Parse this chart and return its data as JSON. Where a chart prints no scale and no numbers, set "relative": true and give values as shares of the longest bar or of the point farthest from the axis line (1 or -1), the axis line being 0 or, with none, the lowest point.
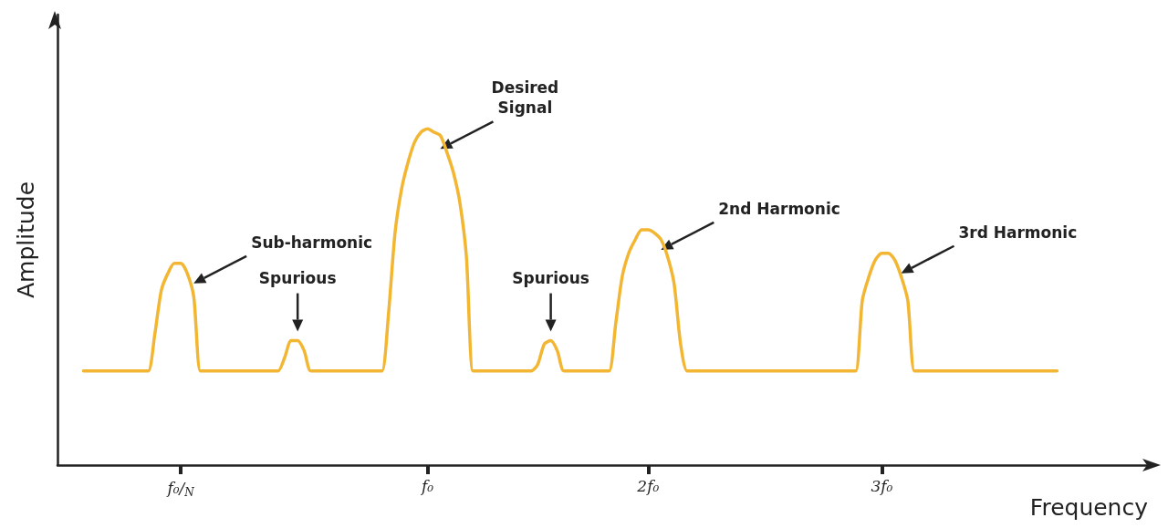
{
  "chart_data": {
    "type": "line",
    "relative": true,
    "xlabel": "Frequency",
    "ylabel": "Amplitude",
    "categories": [
      null,
      null,
      null,
      null,
      null,
      null,
      null,
      null,
      null,
      null,
      null,
      null,
      null,
      null,
      null,
      null,
      null,
      null,
      null,
      "f₀/$_{N}$",
      null,
      null,
      null,
      null,
      null,
      null,
      null,
      null,
      null,
      null,
      null,
      null,
      null,
      null,
      null,
      null,
      null,
      null,
      null,
      null,
      null,
      null,
      null,
      null,
      null,
      null,
      null,
      null,
      null,
      null,
      null,
      null,
      null,
      null,
      null,
      null,
      null,
      "f₀",
      null,
      null,
      null,
      null,
      null,
      null,
      null,
      null,
      null,
      null,
      null,
      null,
      null,
      null,
      null,
      null,
      null,
      null,
      null,
      null,
      null,
      null,
      null,
      null,
      null,
      null,
      null,
      null,
      null,
      null,
      null,
      null,
      null,
      "2f₀",
      null,
      null,
      null,
      null,
      null,
      null,
      null,
      null,
      null,
      null,
      null,
      null,
      null,
      null,
      null,
      null,
      null,
      null,
      null,
      null,
      null,
      null,
      null,
      null,
      null,
      null,
      null,
      null,
      null,
      null,
      null,
      null,
      null,
      null,
      null,
      "3f₀",
      null,
      null,
      null,
      null,
      null,
      null,
      null,
      null,
      null,
      null,
      null,
      null,
      null,
      null,
      null,
      null,
      null,
      null,
      null,
      null,
      null,
      null,
      null,
      null,
      null,
      null,
      null,
      null,
      null,
      null,
      null,
      null,
      null,
      null,
      null,
      null,
      null,
      null,
      null,
      null,
      null
    ],
    "series": [
      {
        "color": "#f2b632",
        "values": [
          null,
          null,
          null,
          null,
          0.28,
          0.28,
          0.28,
          0.28,
          0.28,
          0.28,
          0.28,
          0.28,
          0.28,
          0.28,
          0.28,
          0.39,
          0.52,
          0.57,
          0.6,
          0.6,
          0.57,
          0.5,
          0.28,
          0.28,
          0.28,
          0.28,
          0.28,
          0.28,
          0.28,
          0.28,
          0.28,
          0.28,
          0.28,
          0.28,
          0.28,
          0.32,
          0.37,
          0.37,
          0.34,
          0.28,
          0.28,
          0.28,
          0.28,
          0.28,
          0.28,
          0.28,
          0.28,
          0.28,
          0.28,
          0.28,
          0.28,
          0.45,
          0.69,
          0.82,
          0.9,
          0.96,
          0.99,
          1,
          0.99,
          0.98,
          0.93,
          0.87,
          0.78,
          0.62,
          0.28,
          0.28,
          0.28,
          0.28,
          0.28,
          0.28,
          0.28,
          0.28,
          0.28,
          0.28,
          0.3,
          0.36,
          0.37,
          0.34,
          0.28,
          0.28,
          0.28,
          0.28,
          0.28,
          0.28,
          0.28,
          0.28,
          0.42,
          0.56,
          0.63,
          0.67,
          0.7,
          0.7,
          0.69,
          0.67,
          0.62,
          0.54,
          0.36,
          0.28,
          0.28,
          0.28,
          0.28,
          0.28,
          0.28,
          0.28,
          0.28,
          0.28,
          0.28,
          0.28,
          0.28,
          0.28,
          0.28,
          0.28,
          0.28,
          0.28,
          0.28,
          0.28,
          0.28,
          0.28,
          0.28,
          0.28,
          0.28,
          0.28,
          0.28,
          0.28,
          0.49,
          0.56,
          0.61,
          0.63,
          0.63,
          0.61,
          0.56,
          0.49,
          0.28,
          0.28,
          0.28,
          0.28,
          0.28,
          0.28,
          0.28,
          0.28,
          0.28,
          0.28,
          0.28,
          0.28,
          0.28,
          0.28,
          0.28,
          0.28,
          0.28,
          0.28,
          0.28,
          0.28,
          0.28,
          0.28,
          0.28,
          null,
          null,
          null,
          null,
          null,
          null,
          null,
          null,
          null,
          null,
          null,
          null,
          null,
          null
        ]
      }
    ],
    "annotations": [
      "Sub-harmonic",
      "Spurious",
      "Desired\nSignal",
      "Spurious",
      "2nd Harmonic",
      "3rd Harmonic"
    ],
    "grid": false,
    "marker": "none",
    "line_style": "solid"
  }
}
